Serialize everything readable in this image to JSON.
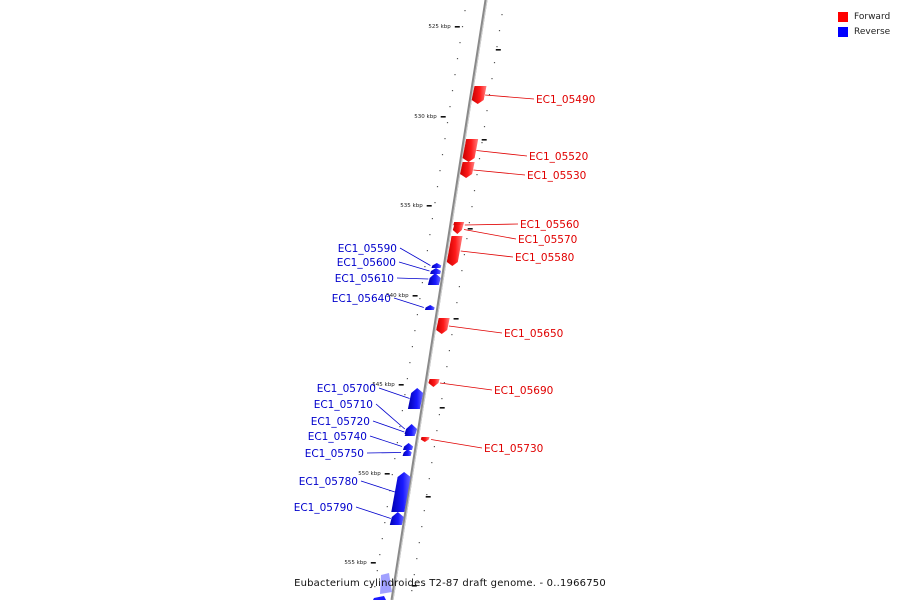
{
  "legend": {
    "forward_label": "Forward",
    "reverse_label": "Reverse",
    "forward_color": "#ff0000",
    "reverse_color": "#0000ff"
  },
  "caption": "Eubacterium cylindroides T2-87 draft genome. - 0..1966750",
  "ticks": [
    "525 kbp",
    "530 kbp",
    "535 kbp",
    "540 kbp",
    "545 kbp",
    "550 kbp",
    "555 kbp"
  ],
  "forward_genes": [
    "EC1_05490",
    "EC1_05520",
    "EC1_05530",
    "EC1_05560",
    "EC1_05570",
    "EC1_05580",
    "EC1_05650",
    "EC1_05690",
    "EC1_05730"
  ],
  "reverse_genes": [
    "EC1_05590",
    "EC1_05600",
    "EC1_05610",
    "EC1_05640",
    "EC1_05700",
    "EC1_05710",
    "EC1_05720",
    "EC1_05740",
    "EC1_05750",
    "EC1_05780",
    "EC1_05790"
  ]
}
